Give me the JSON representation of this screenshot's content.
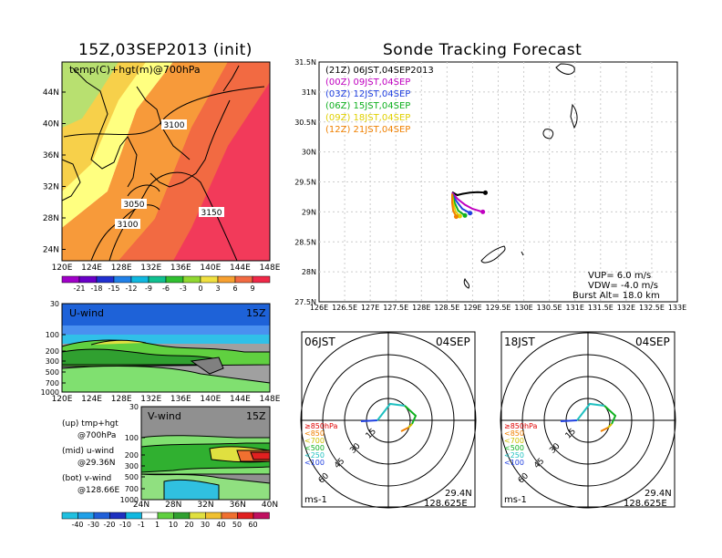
{
  "left_title": "15Z,03SEP2013 (init)",
  "right_title": "Sonde Tracking Forecast",
  "map_panel": {
    "label": "temp(C)+hgt(m)@700hPa",
    "y_ticks": [
      "44N",
      "40N",
      "36N",
      "32N",
      "28N",
      "24N"
    ],
    "x_ticks": [
      "120E",
      "124E",
      "128E",
      "132E",
      "136E",
      "140E",
      "144E",
      "148E"
    ],
    "contour_labels": [
      "3100",
      "3050",
      "3100",
      "3150"
    ],
    "colorbar_labels": [
      "-21",
      "-18",
      "-15",
      "-12",
      "-9",
      "-6",
      "-3",
      "0",
      "3",
      "6",
      "9"
    ]
  },
  "u_panel": {
    "label": "U-wind",
    "time": "15Z",
    "y_ticks": [
      "30",
      "100",
      "200",
      "300",
      "500",
      "700",
      "1000"
    ],
    "x_ticks": [
      "120E",
      "124E",
      "128E",
      "132E",
      "136E",
      "140E",
      "144E",
      "148E"
    ]
  },
  "v_panel": {
    "label": "V-wind",
    "time": "15Z",
    "y_ticks": [
      "30",
      "100",
      "200",
      "300",
      "500",
      "700",
      "1000"
    ],
    "x_ticks": [
      "24N",
      "28N",
      "32N",
      "36N",
      "40N"
    ],
    "colorbar_labels": [
      "-40",
      "-30",
      "-20",
      "-10",
      "-1",
      "1",
      "10",
      "20",
      "30",
      "40",
      "50",
      "60"
    ]
  },
  "side_notes": [
    {
      "a": "(up)  tmp+hgt",
      "b": "@700hPa"
    },
    {
      "a": "(mid)  u-wind",
      "b": "@29.36N"
    },
    {
      "a": "(bot)  v-wind",
      "b": "@128.66E"
    }
  ],
  "track_panel": {
    "legend": [
      {
        "text": "(21Z)  06JST,04SEP2013",
        "color": "#000000"
      },
      {
        "text": "(00Z)  09JST,04SEP",
        "color": "#c000c0"
      },
      {
        "text": "(03Z)  12JST,04SEP",
        "color": "#2040e0"
      },
      {
        "text": "(06Z)  15JST,04SEP",
        "color": "#10b020"
      },
      {
        "text": "(09Z)  18JST,04SEP",
        "color": "#e0d000"
      },
      {
        "text": "(12Z)  21JST,04SEP",
        "color": "#f08000"
      }
    ],
    "y_ticks": [
      "31.5N",
      "31N",
      "30.5N",
      "30N",
      "29.5N",
      "29N",
      "28.5N",
      "28N",
      "27.5N"
    ],
    "x_ticks": [
      "126E",
      "126.5E",
      "127E",
      "127.5E",
      "128E",
      "128.5E",
      "129E",
      "129.5E",
      "130E",
      "130.5E",
      "131E",
      "131.5E",
      "132E",
      "132.5E",
      "133E"
    ],
    "params": [
      "VUP=  6.0  m/s",
      "VDW= -4.0  m/s",
      "Burst Alt=  18.0  km"
    ]
  },
  "hodo_left": {
    "time": "06JST",
    "date": "04SEP",
    "pressure_labels": [
      "≥850hPa",
      "<850",
      "<700",
      "<500",
      "<250",
      "<100"
    ],
    "pressure_colors": [
      "#e00000",
      "#f08000",
      "#d0c000",
      "#10b020",
      "#20c0c0",
      "#2040e0"
    ],
    "ring_labels": [
      "15",
      "30",
      "45",
      "60"
    ],
    "unit": "ms-1",
    "lat": "29.4N",
    "lon": "128.625E"
  },
  "hodo_right": {
    "time": "18JST",
    "date": "04SEP",
    "pressure_labels": [
      "≥850hPa",
      "<850",
      "<700",
      "<500",
      "<250",
      "<100"
    ],
    "pressure_colors": [
      "#e00000",
      "#f08000",
      "#d0c000",
      "#10b020",
      "#20c0c0",
      "#2040e0"
    ],
    "ring_labels": [
      "15",
      "30",
      "45",
      "60"
    ],
    "unit": "ms-1",
    "lat": "29.4N",
    "lon": "128.625E"
  },
  "chart_data": {
    "type": "line",
    "title": "Sonde Tracking Forecast",
    "xlim": [
      126,
      133
    ],
    "ylim": [
      27.5,
      31.5
    ],
    "series": [
      {
        "name": "(21Z) 06JST,04SEP2013",
        "color": "#000000",
        "x": [
          128.6,
          128.7,
          128.8,
          128.95,
          129.1,
          129.25
        ],
        "y": [
          29.33,
          29.28,
          29.3,
          29.32,
          29.33,
          29.32
        ]
      },
      {
        "name": "(00Z) 09JST,04SEP",
        "color": "#c000c0",
        "x": [
          128.6,
          128.7,
          128.85,
          129.0,
          129.2
        ],
        "y": [
          29.32,
          29.22,
          29.12,
          29.05,
          29.0
        ]
      },
      {
        "name": "(03Z) 12JST,04SEP",
        "color": "#2040e0",
        "x": [
          128.6,
          128.68,
          128.8,
          128.95
        ],
        "y": [
          29.3,
          29.18,
          29.05,
          28.98
        ]
      },
      {
        "name": "(06Z) 15JST,04SEP",
        "color": "#10b020",
        "x": [
          128.6,
          128.65,
          128.72,
          128.85
        ],
        "y": [
          29.3,
          29.15,
          29.02,
          28.94
        ]
      },
      {
        "name": "(09Z) 18JST,04SEP",
        "color": "#e0d000",
        "x": [
          128.6,
          128.62,
          128.67,
          128.75
        ],
        "y": [
          29.3,
          29.15,
          29.0,
          28.93
        ]
      },
      {
        "name": "(12Z) 21JST,04SEP",
        "color": "#f08000",
        "x": [
          128.6,
          128.6,
          128.62,
          128.68
        ],
        "y": [
          29.3,
          29.15,
          29.02,
          28.92
        ]
      }
    ]
  }
}
